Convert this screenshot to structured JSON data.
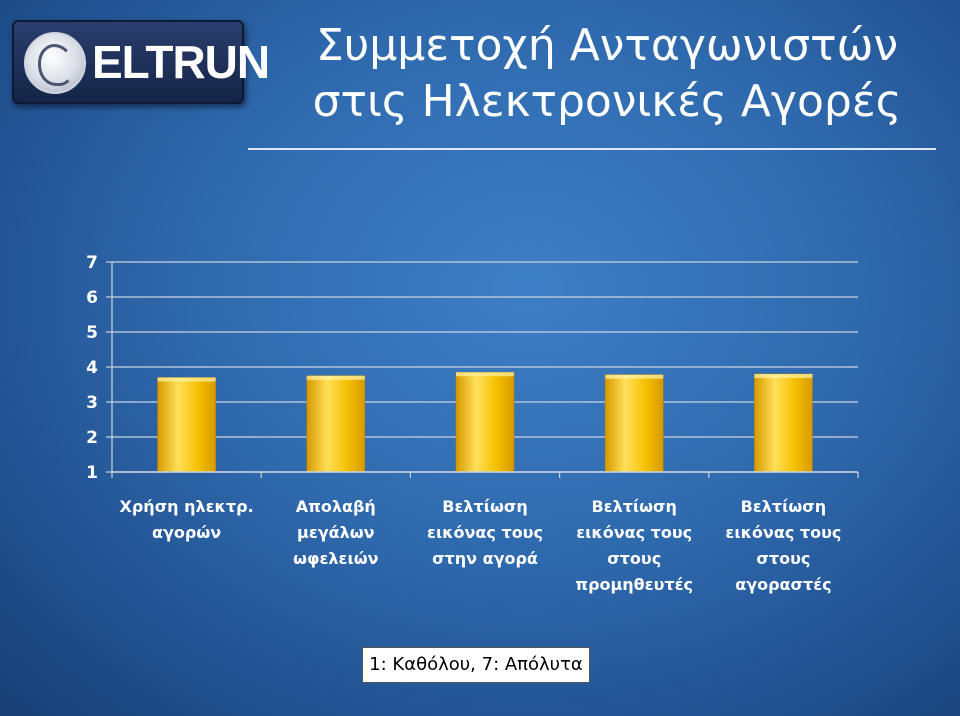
{
  "logo": {
    "text": "ELTRUN"
  },
  "title": {
    "line1": "Συμμετοχή Ανταγωνιστών",
    "line2": "στις Ηλεκτρονικές Αγορές"
  },
  "legend": {
    "text": "1: Καθόλου, 7: Απόλυτα"
  },
  "colors": {
    "bar": "#f5c000",
    "bar_light": "#ffe05a",
    "bar_dark": "#d79a00",
    "grid": "#c9d3df",
    "text": "#ffffff"
  },
  "chart_data": {
    "type": "bar",
    "categories": [
      [
        "Χρήση ηλεκτρ.",
        "αγορών"
      ],
      [
        "Απολαβή",
        "μεγάλων",
        "ωφελειών"
      ],
      [
        "Βελτίωση",
        "εικόνας τους",
        "στην αγορά"
      ],
      [
        "Βελτίωση",
        "εικόνας τους",
        "στους",
        "προμηθευτές"
      ],
      [
        "Βελτίωση",
        "εικόνας τους",
        "στους",
        "αγοραστές"
      ]
    ],
    "values": [
      3.7,
      3.75,
      3.85,
      3.78,
      3.8
    ],
    "yticks": [
      1,
      2,
      3,
      4,
      5,
      6,
      7
    ],
    "ylim": [
      1,
      7
    ],
    "grid": true,
    "legend": "none"
  }
}
